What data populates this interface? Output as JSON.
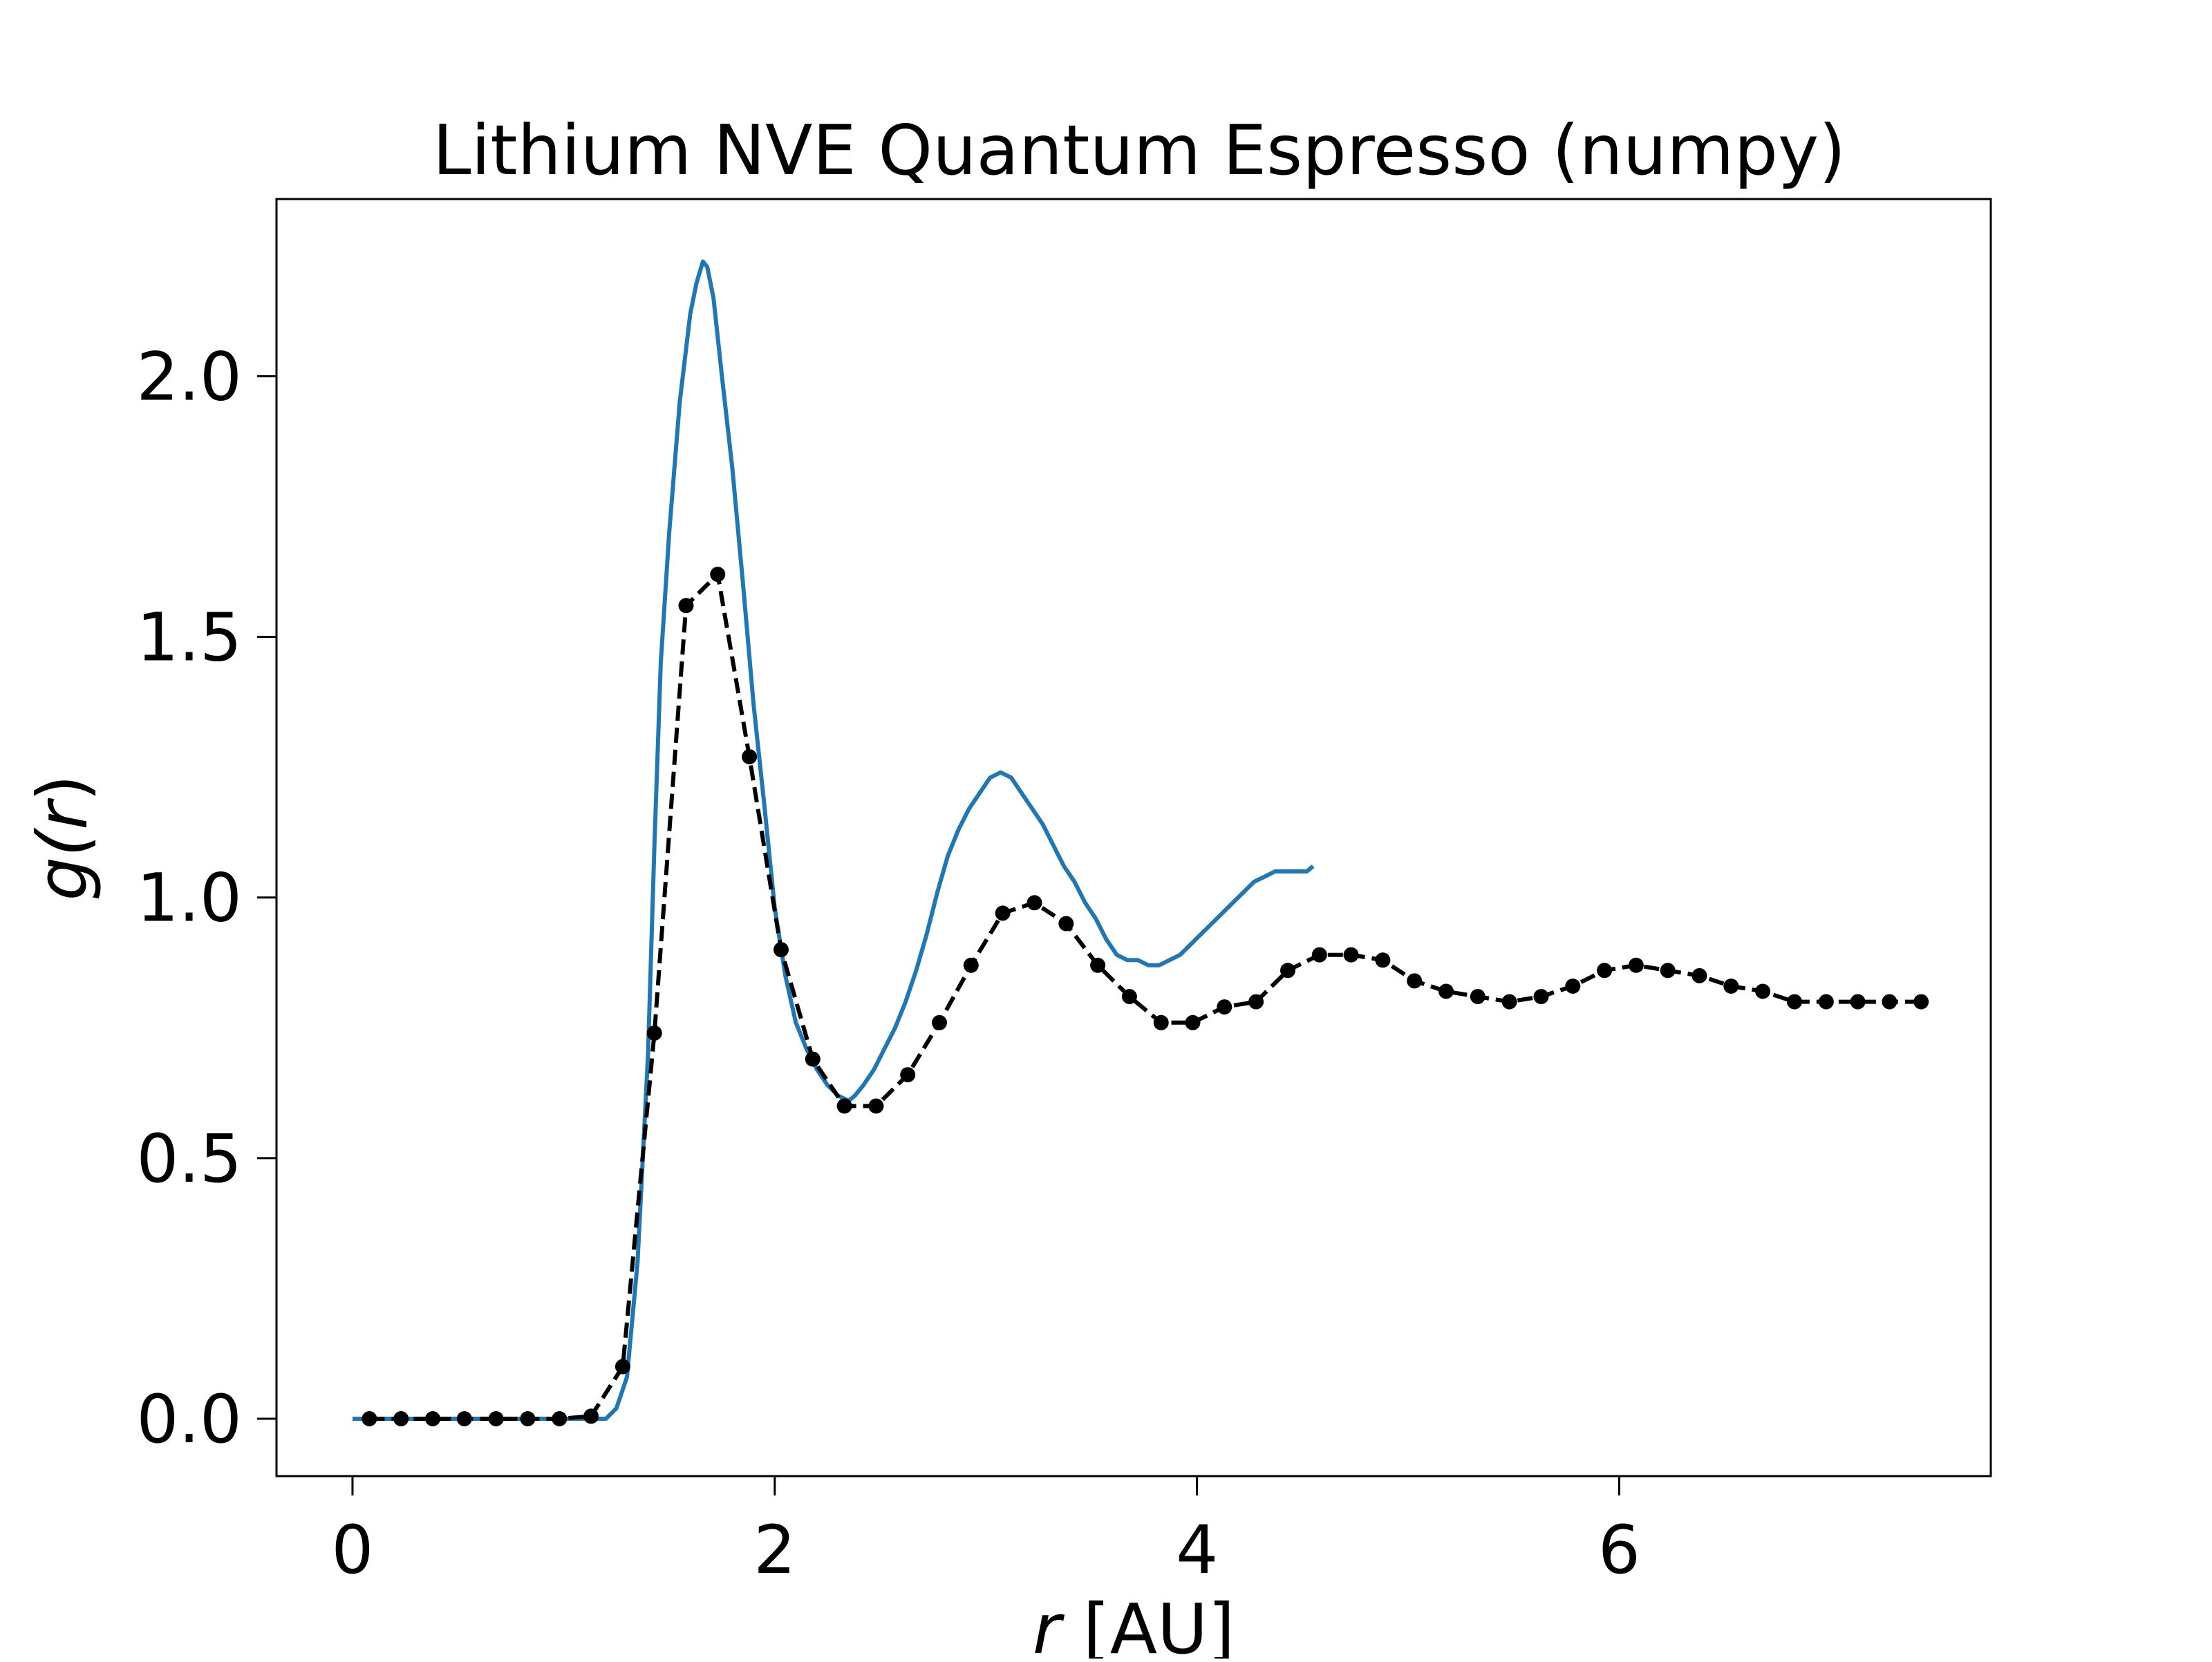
{
  "chart_data": {
    "type": "line",
    "title": "Lithium NVE Quantum Espresso (numpy)",
    "xlabel_var": "r",
    "xlabel_rest": " [AU]",
    "ylabel_func": "g(",
    "ylabel_var": "r",
    "ylabel_close": ")",
    "xlim": [
      -0.36,
      7.76
    ],
    "ylim": [
      -0.11,
      2.34
    ],
    "xticks": [
      {
        "value": 0,
        "label": "0"
      },
      {
        "value": 2,
        "label": "2"
      },
      {
        "value": 4,
        "label": "4"
      },
      {
        "value": 6,
        "label": "6"
      }
    ],
    "yticks": [
      {
        "value": 0.0,
        "label": "0.0"
      },
      {
        "value": 0.5,
        "label": "0.5"
      },
      {
        "value": 1.0,
        "label": "1.0"
      },
      {
        "value": 1.5,
        "label": "1.5"
      },
      {
        "value": 2.0,
        "label": "2.0"
      }
    ],
    "grid": false,
    "legend": false,
    "series": [
      {
        "style": "solid",
        "color": "#1f77b4",
        "x": [
          0.0,
          0.5,
          1.0,
          1.2,
          1.25,
          1.3,
          1.35,
          1.4,
          1.43,
          1.46,
          1.5,
          1.55,
          1.6,
          1.63,
          1.66,
          1.68,
          1.71,
          1.75,
          1.8,
          1.85,
          1.9,
          1.95,
          2.0,
          2.05,
          2.1,
          2.15,
          2.2,
          2.25,
          2.3,
          2.35,
          2.38,
          2.42,
          2.47,
          2.52,
          2.57,
          2.62,
          2.67,
          2.72,
          2.77,
          2.82,
          2.87,
          2.92,
          2.97,
          3.02,
          3.07,
          3.12,
          3.17,
          3.22,
          3.27,
          3.32,
          3.37,
          3.42,
          3.47,
          3.52,
          3.57,
          3.62,
          3.67,
          3.72,
          3.77,
          3.82,
          3.87,
          3.92,
          3.97,
          4.02,
          4.07,
          4.12,
          4.17,
          4.22,
          4.27,
          4.32,
          4.37,
          4.42,
          4.47,
          4.52,
          4.55
        ],
        "y": [
          0.0,
          0.0,
          0.0,
          0.0,
          0.02,
          0.08,
          0.3,
          0.7,
          1.1,
          1.45,
          1.7,
          1.95,
          2.12,
          2.18,
          2.22,
          2.21,
          2.15,
          2.0,
          1.82,
          1.6,
          1.37,
          1.18,
          0.98,
          0.85,
          0.76,
          0.71,
          0.67,
          0.64,
          0.62,
          0.61,
          0.62,
          0.64,
          0.67,
          0.71,
          0.75,
          0.8,
          0.86,
          0.93,
          1.01,
          1.08,
          1.13,
          1.17,
          1.2,
          1.23,
          1.24,
          1.23,
          1.2,
          1.17,
          1.14,
          1.1,
          1.06,
          1.03,
          0.99,
          0.96,
          0.92,
          0.89,
          0.88,
          0.88,
          0.87,
          0.87,
          0.88,
          0.89,
          0.91,
          0.93,
          0.95,
          0.97,
          0.99,
          1.01,
          1.03,
          1.04,
          1.05,
          1.05,
          1.05,
          1.05,
          1.06
        ]
      },
      {
        "style": "dashed",
        "color": "#000000",
        "marker": "circle",
        "x": [
          0.08,
          0.23,
          0.38,
          0.53,
          0.68,
          0.83,
          0.98,
          1.13,
          1.28,
          1.43,
          1.58,
          1.73,
          1.88,
          2.03,
          2.18,
          2.33,
          2.48,
          2.63,
          2.78,
          2.93,
          3.08,
          3.23,
          3.38,
          3.53,
          3.68,
          3.83,
          3.98,
          4.13,
          4.28,
          4.43,
          4.58,
          4.73,
          4.88,
          5.03,
          5.18,
          5.33,
          5.48,
          5.63,
          5.78,
          5.93,
          6.08,
          6.23,
          6.38,
          6.53,
          6.68,
          6.83,
          6.98,
          7.13,
          7.28,
          7.43
        ],
        "y": [
          0.0,
          0.0,
          0.0,
          0.0,
          0.0,
          0.0,
          0.0,
          0.005,
          0.1,
          0.74,
          1.56,
          1.62,
          1.27,
          0.9,
          0.69,
          0.6,
          0.6,
          0.66,
          0.76,
          0.87,
          0.97,
          0.99,
          0.95,
          0.87,
          0.81,
          0.76,
          0.76,
          0.79,
          0.8,
          0.86,
          0.89,
          0.89,
          0.88,
          0.84,
          0.82,
          0.81,
          0.8,
          0.81,
          0.83,
          0.86,
          0.87,
          0.86,
          0.85,
          0.83,
          0.82,
          0.8,
          0.8,
          0.8,
          0.8,
          0.8
        ]
      }
    ]
  }
}
